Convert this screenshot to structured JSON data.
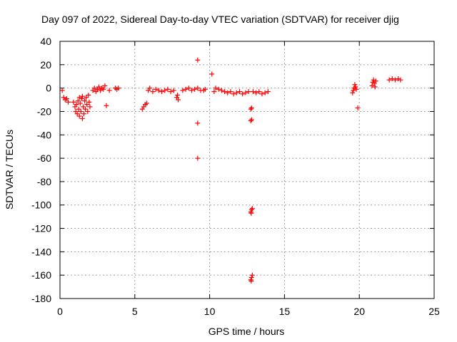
{
  "chart_data": {
    "type": "scatter",
    "title": "Day 097 of 2022, Sidereal Day-to-day VTEC variation (SDTVAR) for receiver djig",
    "xlabel": "GPS time / hours",
    "ylabel": "SDTVAR / TECUs",
    "xlim": [
      0,
      25
    ],
    "ylim": [
      -180,
      40
    ],
    "xticks": [
      0,
      5,
      10,
      15,
      20,
      25
    ],
    "yticks": [
      40,
      20,
      0,
      -20,
      -40,
      -60,
      -80,
      -100,
      -120,
      -140,
      -160,
      -180
    ],
    "grid": true,
    "marker": "+",
    "color": "#ff0000",
    "series": [
      {
        "name": "SDTVAR",
        "points": [
          [
            0.15,
            -2
          ],
          [
            0.25,
            -8
          ],
          [
            0.35,
            -10
          ],
          [
            0.45,
            -9
          ],
          [
            0.55,
            -12
          ],
          [
            0.9,
            -12
          ],
          [
            1.0,
            -16
          ],
          [
            1.05,
            -20
          ],
          [
            1.1,
            -14
          ],
          [
            1.15,
            -22
          ],
          [
            1.2,
            -11
          ],
          [
            1.25,
            -18
          ],
          [
            1.3,
            -24
          ],
          [
            1.35,
            -13
          ],
          [
            1.4,
            -20
          ],
          [
            1.45,
            -9
          ],
          [
            1.5,
            -26
          ],
          [
            1.55,
            -16
          ],
          [
            1.6,
            -22
          ],
          [
            1.65,
            -11
          ],
          [
            1.7,
            -18
          ],
          [
            1.75,
            -8
          ],
          [
            1.8,
            -14
          ],
          [
            1.85,
            -20
          ],
          [
            1.9,
            -6
          ],
          [
            1.95,
            -12
          ],
          [
            2.0,
            -16
          ],
          [
            1.3,
            -8
          ],
          [
            1.5,
            -7
          ],
          [
            2.2,
            -2
          ],
          [
            2.3,
            0
          ],
          [
            2.4,
            -3
          ],
          [
            2.5,
            -1
          ],
          [
            2.6,
            1
          ],
          [
            2.7,
            -2
          ],
          [
            2.8,
            0
          ],
          [
            2.9,
            -1
          ],
          [
            3.0,
            2
          ],
          [
            3.1,
            -15
          ],
          [
            3.3,
            -2
          ],
          [
            3.7,
            0
          ],
          [
            3.8,
            -1
          ],
          [
            3.9,
            0
          ],
          [
            5.5,
            -18
          ],
          [
            5.6,
            -16
          ],
          [
            5.7,
            -14
          ],
          [
            5.8,
            -13
          ],
          [
            5.9,
            -2
          ],
          [
            6.0,
            0
          ],
          [
            6.2,
            -3
          ],
          [
            6.4,
            -1
          ],
          [
            6.6,
            -2
          ],
          [
            6.8,
            -3
          ],
          [
            7.0,
            -2
          ],
          [
            7.2,
            -1
          ],
          [
            7.4,
            -3
          ],
          [
            7.6,
            -2
          ],
          [
            7.8,
            -8
          ],
          [
            7.9,
            -10
          ],
          [
            7.85,
            -6
          ],
          [
            8.2,
            -2
          ],
          [
            8.4,
            -1
          ],
          [
            8.6,
            0
          ],
          [
            8.8,
            -2
          ],
          [
            9.0,
            -1
          ],
          [
            9.2,
            0
          ],
          [
            9.4,
            -2
          ],
          [
            9.2,
            24
          ],
          [
            9.2,
            -30
          ],
          [
            9.2,
            -60
          ],
          [
            9.6,
            -2
          ],
          [
            9.7,
            -1
          ],
          [
            10.15,
            12
          ],
          [
            10.3,
            -3
          ],
          [
            10.4,
            0
          ],
          [
            10.6,
            -1
          ],
          [
            10.8,
            -2
          ],
          [
            11.0,
            -3
          ],
          [
            11.2,
            -4
          ],
          [
            11.4,
            -3
          ],
          [
            11.6,
            -5
          ],
          [
            11.8,
            -4
          ],
          [
            12.0,
            -3
          ],
          [
            12.2,
            -5
          ],
          [
            12.4,
            -4
          ],
          [
            12.6,
            -3
          ],
          [
            12.75,
            -18
          ],
          [
            12.8,
            -17
          ],
          [
            12.75,
            -28
          ],
          [
            12.8,
            -27
          ],
          [
            12.75,
            -106
          ],
          [
            12.8,
            -104
          ],
          [
            12.85,
            -103
          ],
          [
            12.78,
            -107
          ],
          [
            12.75,
            -164
          ],
          [
            12.8,
            -162
          ],
          [
            12.85,
            -160
          ],
          [
            12.78,
            -165
          ],
          [
            12.9,
            -3
          ],
          [
            13.1,
            -4
          ],
          [
            13.3,
            -3
          ],
          [
            13.5,
            -5
          ],
          [
            13.7,
            -4
          ],
          [
            13.9,
            -3
          ],
          [
            19.55,
            -4
          ],
          [
            19.6,
            -2
          ],
          [
            19.65,
            0
          ],
          [
            19.7,
            3
          ],
          [
            19.75,
            1
          ],
          [
            19.8,
            -1
          ],
          [
            19.9,
            -17
          ],
          [
            20.85,
            2
          ],
          [
            20.9,
            5
          ],
          [
            20.95,
            7
          ],
          [
            21.0,
            4
          ],
          [
            21.05,
            1
          ],
          [
            21.1,
            6
          ],
          [
            22.0,
            7
          ],
          [
            22.2,
            8
          ],
          [
            22.4,
            7
          ],
          [
            22.6,
            8
          ],
          [
            22.75,
            7
          ]
        ]
      }
    ]
  }
}
